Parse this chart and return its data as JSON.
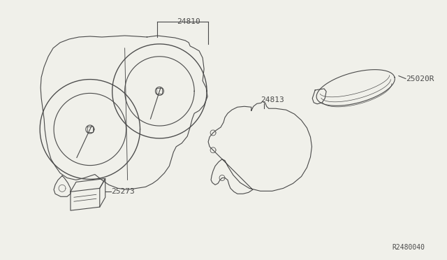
{
  "bg_color": "#f0f0ea",
  "line_color": "#4a4a4a",
  "text_color": "#4a4a4a",
  "label_24810": "24810",
  "label_24813": "24813",
  "label_25020R": "25020R",
  "label_25273": "25273",
  "diagram_id": "R2480040",
  "lw": 0.8
}
